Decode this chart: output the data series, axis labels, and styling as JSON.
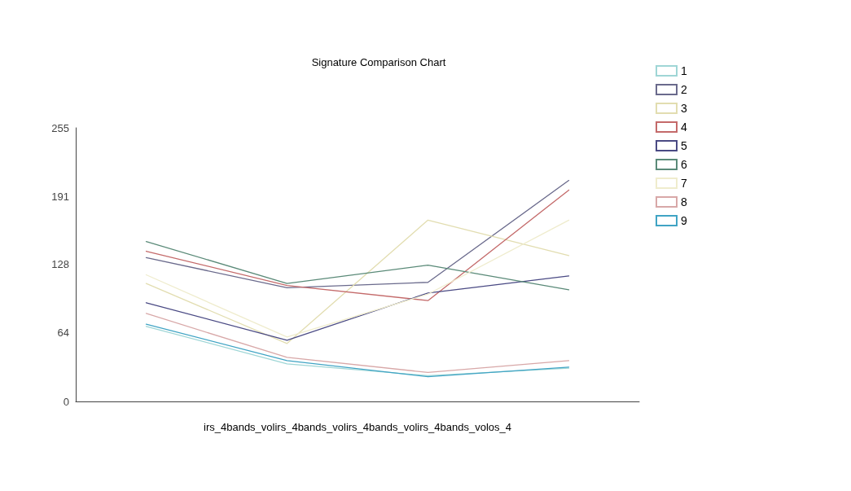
{
  "chart_data": {
    "type": "line",
    "title": "Signature Comparison Chart",
    "xlabel": "irs_4bands_volirs_4bands_volirs_4bands_volirs_4bands_volos_4",
    "categories": [
      null,
      null,
      null,
      null
    ],
    "series": [
      {
        "name": "1",
        "color": "#9fd6d6",
        "values": [
          70,
          35,
          24,
          31
        ]
      },
      {
        "name": "2",
        "color": "#6a6a8c",
        "values": [
          134,
          106,
          111,
          206
        ]
      },
      {
        "name": "3",
        "color": "#e2ddb0",
        "values": [
          110,
          54,
          169,
          136
        ]
      },
      {
        "name": "4",
        "color": "#c46a6a",
        "values": [
          140,
          108,
          94,
          197
        ]
      },
      {
        "name": "5",
        "color": "#4a4a84",
        "values": [
          92,
          57,
          101,
          117
        ]
      },
      {
        "name": "6",
        "color": "#5a8a78",
        "values": [
          149,
          110,
          127,
          104
        ]
      },
      {
        "name": "7",
        "color": "#efeccd",
        "values": [
          118,
          60,
          100,
          169
        ]
      },
      {
        "name": "8",
        "color": "#d8a8a8",
        "values": [
          82,
          41,
          27,
          38
        ]
      },
      {
        "name": "9",
        "color": "#40a4c4",
        "values": [
          72,
          38,
          23,
          32
        ]
      }
    ],
    "ylim": [
      0,
      255
    ],
    "yticks": [
      0,
      64,
      128,
      191,
      255
    ],
    "grid": false,
    "legend": "top right",
    "marker": "none",
    "line_style": "solid"
  }
}
